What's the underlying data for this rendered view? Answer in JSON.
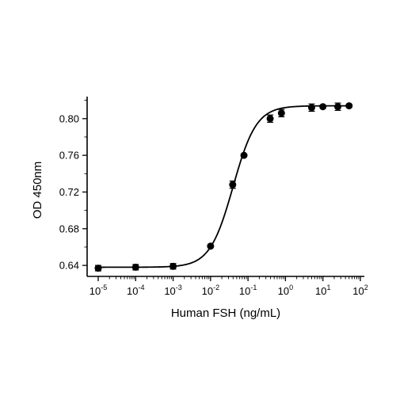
{
  "chart_data": {
    "type": "scatter",
    "title": "",
    "xlabel": "Human FSH (ng/mL)",
    "ylabel": "OD 450nm",
    "x_scale": "log10",
    "xlim": [
      1e-05,
      100
    ],
    "ylim": [
      0.628,
      0.824
    ],
    "x_ticks": [
      {
        "value": 1e-05,
        "base": "10",
        "exp": "-5"
      },
      {
        "value": 0.0001,
        "base": "10",
        "exp": "-4"
      },
      {
        "value": 0.001,
        "base": "10",
        "exp": "-3"
      },
      {
        "value": 0.01,
        "base": "10",
        "exp": "-2"
      },
      {
        "value": 0.1,
        "base": "10",
        "exp": "-1"
      },
      {
        "value": 1,
        "base": "10",
        "exp": "0"
      },
      {
        "value": 10,
        "base": "10",
        "exp": "1"
      },
      {
        "value": 100,
        "base": "10",
        "exp": "2"
      }
    ],
    "y_ticks": [
      "0.64",
      "0.68",
      "0.72",
      "0.76",
      "0.80"
    ],
    "grid": false,
    "legend": "none",
    "series": [
      {
        "points": [
          {
            "x": 1e-05,
            "y": 0.637,
            "err": 0.003
          },
          {
            "x": 0.0001,
            "y": 0.638,
            "err": 0.003
          },
          {
            "x": 0.001,
            "y": 0.639,
            "err": 0.003
          },
          {
            "x": 0.01,
            "y": 0.661,
            "err": 0.001
          },
          {
            "x": 0.039,
            "y": 0.728,
            "err": 0.004
          },
          {
            "x": 0.078,
            "y": 0.76,
            "err": 0.001
          },
          {
            "x": 0.39,
            "y": 0.8,
            "err": 0.004
          },
          {
            "x": 0.78,
            "y": 0.806,
            "err": 0.004
          },
          {
            "x": 5,
            "y": 0.812,
            "err": 0.004
          },
          {
            "x": 10,
            "y": 0.813,
            "err": 0.001
          },
          {
            "x": 25,
            "y": 0.813,
            "err": 0.004
          },
          {
            "x": 50,
            "y": 0.814,
            "err": 0.001
          }
        ],
        "fit": {
          "model": "4PL",
          "bottom": 0.638,
          "top": 0.814,
          "ec50": 0.04,
          "hill": 1.4
        }
      }
    ],
    "colors": {
      "marker": "#000000",
      "line": "#000000"
    }
  }
}
